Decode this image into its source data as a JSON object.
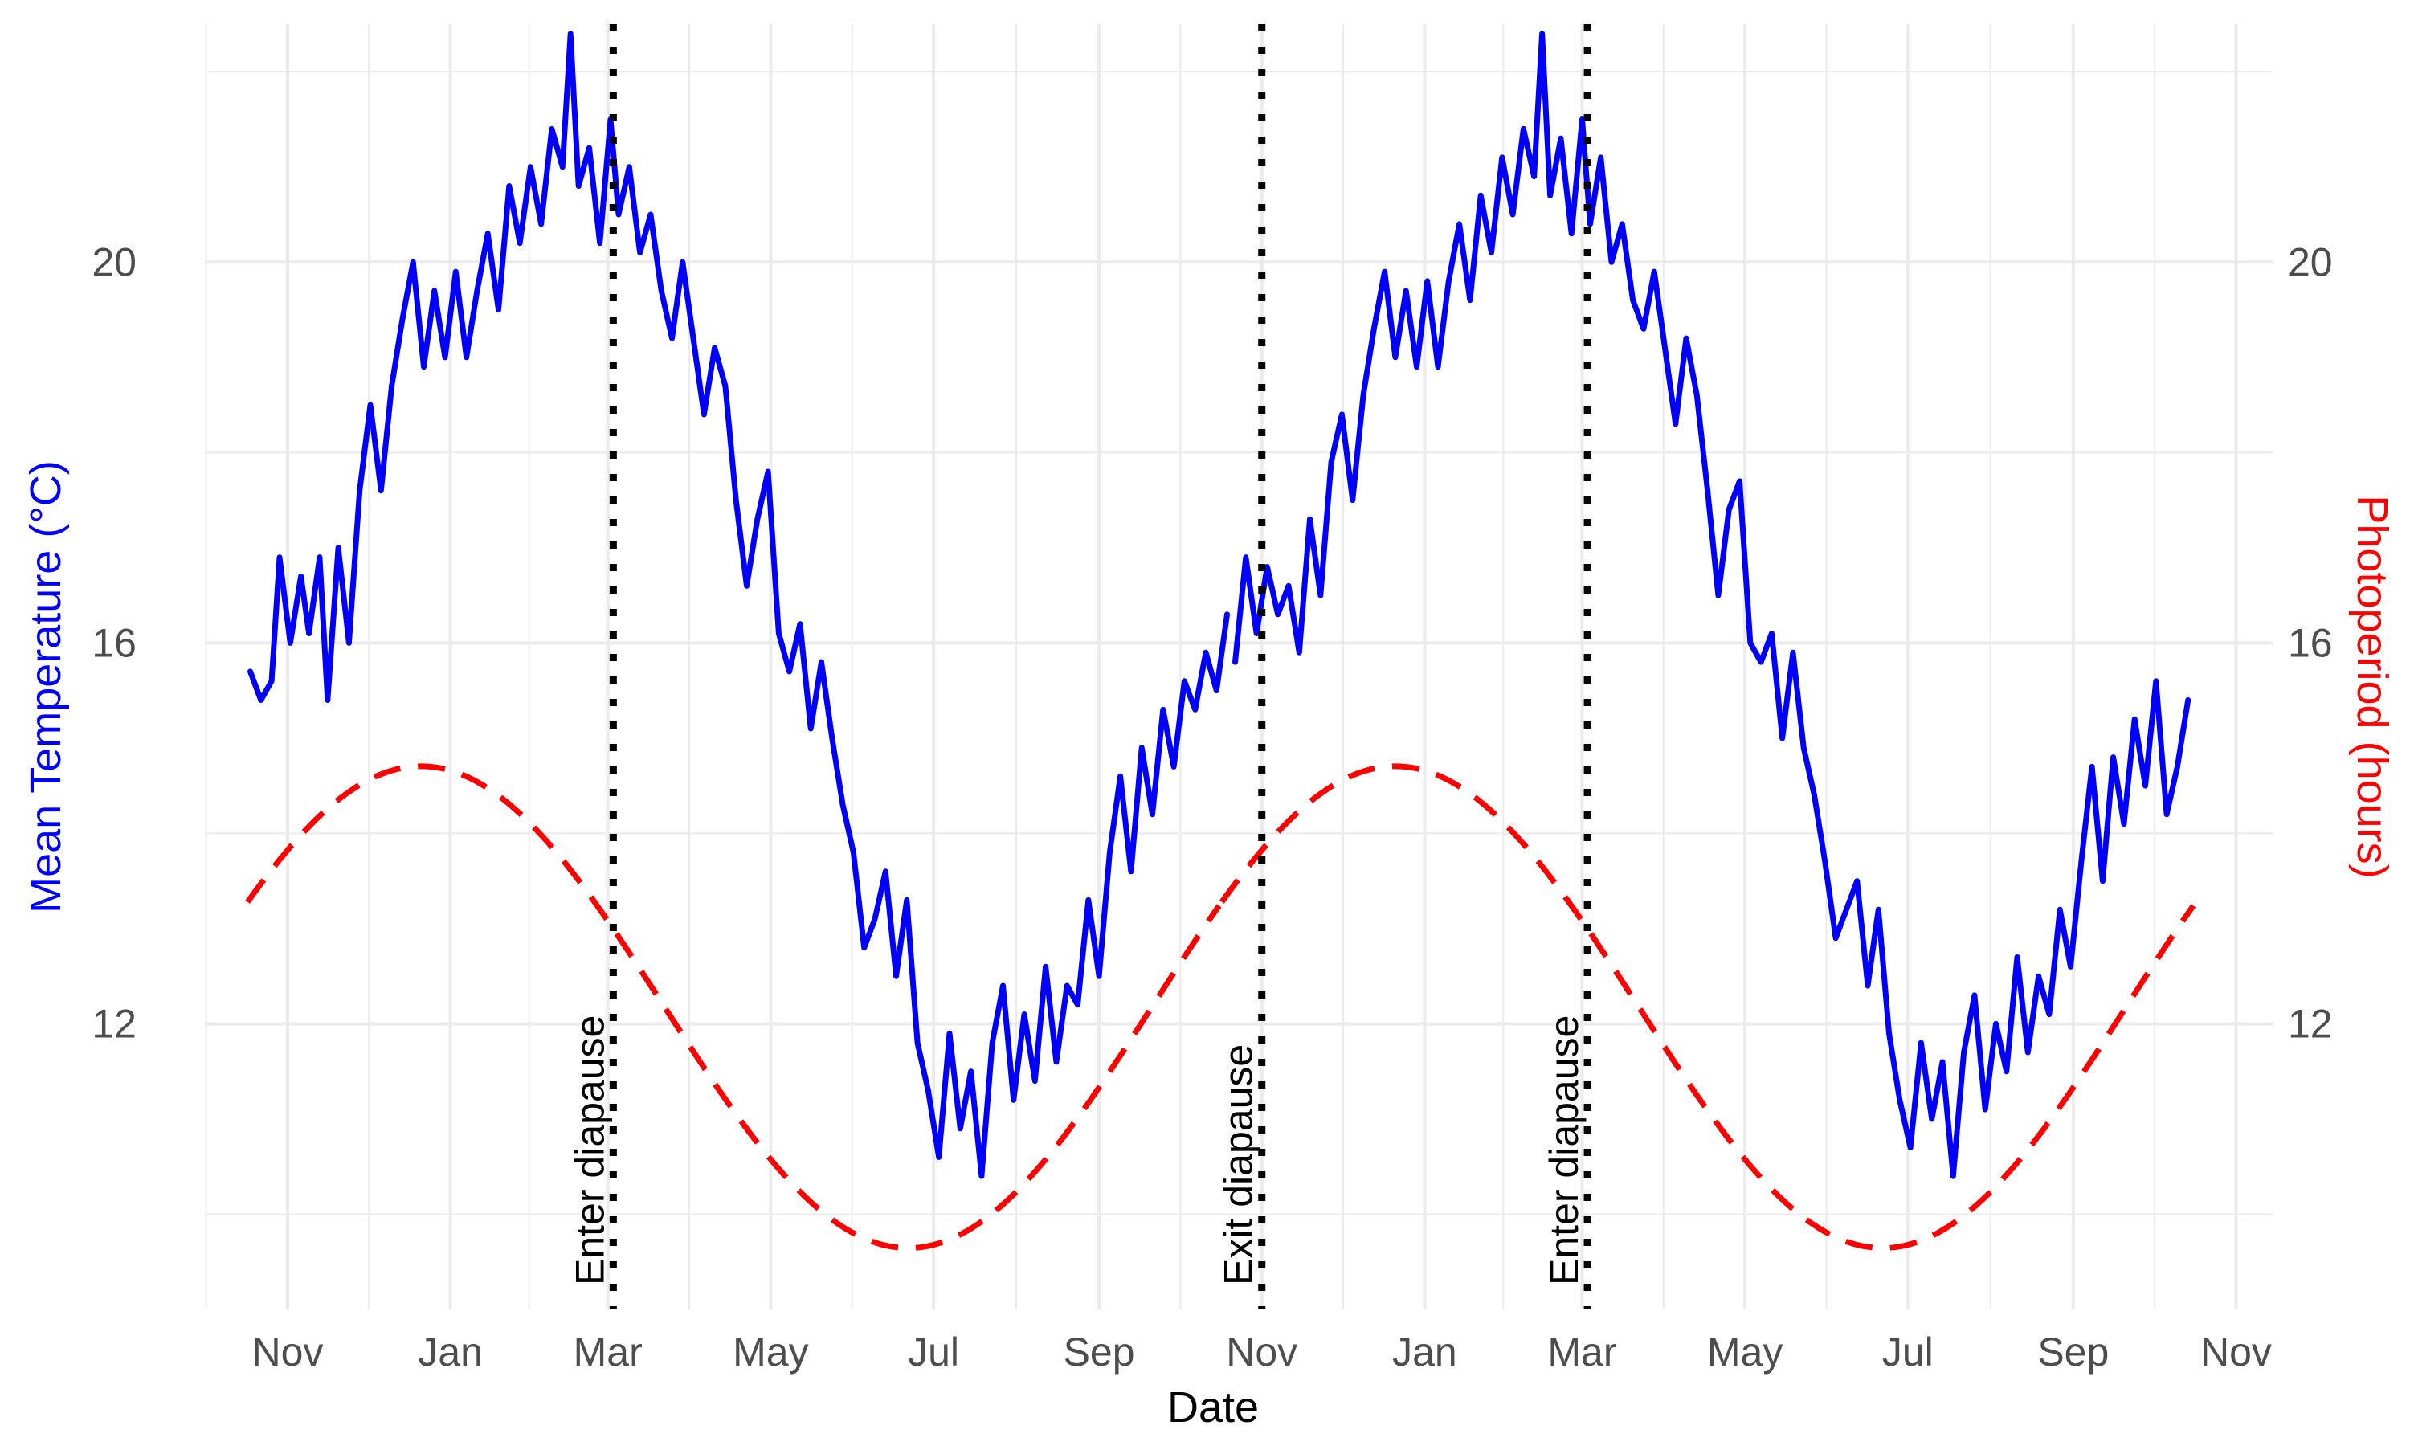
{
  "chart_data": {
    "type": "line",
    "xlabel": "Date",
    "ylabel": "Mean Temperature (°C)",
    "ylabel_right": "Photoperiod (hours)",
    "x_range": [
      "2020-10-01",
      "2022-11-15"
    ],
    "y_range": [
      9.0,
      22.5
    ],
    "y_ticks": [
      12,
      16,
      20
    ],
    "x_ticks": [
      {
        "date": "2020-11-01",
        "label": "Nov"
      },
      {
        "date": "2021-01-01",
        "label": "Jan"
      },
      {
        "date": "2021-03-01",
        "label": "Mar"
      },
      {
        "date": "2021-05-01",
        "label": "May"
      },
      {
        "date": "2021-07-01",
        "label": "Jul"
      },
      {
        "date": "2021-09-01",
        "label": "Sep"
      },
      {
        "date": "2021-11-01",
        "label": "Nov"
      },
      {
        "date": "2022-01-01",
        "label": "Jan"
      },
      {
        "date": "2022-03-01",
        "label": "Mar"
      },
      {
        "date": "2022-05-01",
        "label": "May"
      },
      {
        "date": "2022-07-01",
        "label": "Jul"
      },
      {
        "date": "2022-09-01",
        "label": "Sep"
      },
      {
        "date": "2022-11-01",
        "label": "Nov"
      }
    ],
    "grid": true,
    "legend": "none",
    "series": [
      {
        "color": "#0000ff",
        "style": "solid",
        "axis": "left",
        "points": [
          [
            "2020-10-18",
            15.7
          ],
          [
            "2020-10-22",
            15.4
          ],
          [
            "2020-10-26",
            15.6
          ],
          [
            "2020-10-29",
            16.9
          ],
          [
            "2020-11-02",
            16.0
          ],
          [
            "2020-11-06",
            16.7
          ],
          [
            "2020-11-09",
            16.1
          ],
          [
            "2020-11-13",
            16.9
          ],
          [
            "2020-11-16",
            15.4
          ],
          [
            "2020-11-20",
            17.0
          ],
          [
            "2020-11-24",
            16.0
          ],
          [
            "2020-11-28",
            17.6
          ],
          [
            "2020-12-02",
            18.5
          ],
          [
            "2020-12-06",
            17.6
          ],
          [
            "2020-12-10",
            18.7
          ],
          [
            "2020-12-14",
            19.4
          ],
          [
            "2020-12-18",
            20.0
          ],
          [
            "2020-12-22",
            18.9
          ],
          [
            "2020-12-26",
            19.7
          ],
          [
            "2020-12-30",
            19.0
          ],
          [
            "2021-01-03",
            19.9
          ],
          [
            "2021-01-07",
            19.0
          ],
          [
            "2021-01-11",
            19.7
          ],
          [
            "2021-01-15",
            20.3
          ],
          [
            "2021-01-19",
            19.5
          ],
          [
            "2021-01-23",
            20.8
          ],
          [
            "2021-01-27",
            20.2
          ],
          [
            "2021-01-31",
            21.0
          ],
          [
            "2021-02-04",
            20.4
          ],
          [
            "2021-02-08",
            21.4
          ],
          [
            "2021-02-12",
            21.0
          ],
          [
            "2021-02-15",
            22.4
          ],
          [
            "2021-02-18",
            20.8
          ],
          [
            "2021-02-22",
            21.2
          ],
          [
            "2021-02-26",
            20.2
          ],
          [
            "2021-03-02",
            21.5
          ],
          [
            "2021-03-05",
            20.5
          ],
          [
            "2021-03-09",
            21.0
          ],
          [
            "2021-03-13",
            20.1
          ],
          [
            "2021-03-17",
            20.5
          ],
          [
            "2021-03-21",
            19.7
          ],
          [
            "2021-03-25",
            19.2
          ],
          [
            "2021-03-29",
            20.0
          ],
          [
            "2021-04-02",
            19.2
          ],
          [
            "2021-04-06",
            18.4
          ],
          [
            "2021-04-10",
            19.1
          ],
          [
            "2021-04-14",
            18.7
          ],
          [
            "2021-04-18",
            17.5
          ],
          [
            "2021-04-22",
            16.6
          ],
          [
            "2021-04-26",
            17.3
          ],
          [
            "2021-04-30",
            17.8
          ],
          [
            "2021-05-04",
            16.1
          ],
          [
            "2021-05-08",
            15.7
          ],
          [
            "2021-05-12",
            16.2
          ],
          [
            "2021-05-16",
            15.1
          ],
          [
            "2021-05-20",
            15.8
          ],
          [
            "2021-05-24",
            15.0
          ],
          [
            "2021-05-28",
            14.3
          ],
          [
            "2021-06-01",
            13.8
          ],
          [
            "2021-06-05",
            12.8
          ],
          [
            "2021-06-09",
            13.1
          ],
          [
            "2021-06-13",
            13.6
          ],
          [
            "2021-06-17",
            12.5
          ],
          [
            "2021-06-21",
            13.3
          ],
          [
            "2021-06-25",
            11.8
          ],
          [
            "2021-06-29",
            11.3
          ],
          [
            "2021-07-03",
            10.6
          ],
          [
            "2021-07-07",
            11.9
          ],
          [
            "2021-07-11",
            10.9
          ],
          [
            "2021-07-15",
            11.5
          ],
          [
            "2021-07-19",
            10.4
          ],
          [
            "2021-07-23",
            11.8
          ],
          [
            "2021-07-27",
            12.4
          ],
          [
            "2021-07-31",
            11.2
          ],
          [
            "2021-08-04",
            12.1
          ],
          [
            "2021-08-08",
            11.4
          ],
          [
            "2021-08-12",
            12.6
          ],
          [
            "2021-08-16",
            11.6
          ],
          [
            "2021-08-20",
            12.4
          ],
          [
            "2021-08-24",
            12.2
          ],
          [
            "2021-08-28",
            13.3
          ],
          [
            "2021-09-01",
            12.5
          ],
          [
            "2021-09-05",
            13.8
          ],
          [
            "2021-09-09",
            14.6
          ],
          [
            "2021-09-13",
            13.6
          ],
          [
            "2021-09-17",
            14.9
          ],
          [
            "2021-09-21",
            14.2
          ],
          [
            "2021-09-25",
            15.3
          ],
          [
            "2021-09-29",
            14.7
          ],
          [
            "2021-10-03",
            15.6
          ],
          [
            "2021-10-07",
            15.3
          ],
          [
            "2021-10-11",
            15.9
          ],
          [
            "2021-10-15",
            15.5
          ],
          [
            "2021-10-19",
            16.3
          ]
        ]
      },
      {
        "color": "#ff0000",
        "style": "dashed",
        "axis": "right",
        "mean": 12.175,
        "amplitude": 2.53,
        "peak_date": "2020-12-21"
      },
      {
        "color": "#0000ff",
        "style": "solid",
        "axis": "left",
        "points": [
          [
            "2021-10-22",
            15.8
          ],
          [
            "2021-10-26",
            16.9
          ],
          [
            "2021-10-30",
            16.1
          ],
          [
            "2021-11-03",
            16.8
          ],
          [
            "2021-11-07",
            16.3
          ],
          [
            "2021-11-11",
            16.6
          ],
          [
            "2021-11-15",
            15.9
          ],
          [
            "2021-11-19",
            17.3
          ],
          [
            "2021-11-23",
            16.5
          ],
          [
            "2021-11-27",
            17.9
          ],
          [
            "2021-12-01",
            18.4
          ],
          [
            "2021-12-05",
            17.5
          ],
          [
            "2021-12-09",
            18.6
          ],
          [
            "2021-12-13",
            19.3
          ],
          [
            "2021-12-17",
            19.9
          ],
          [
            "2021-12-21",
            19.0
          ],
          [
            "2021-12-25",
            19.7
          ],
          [
            "2021-12-29",
            18.9
          ],
          [
            "2022-01-02",
            19.8
          ],
          [
            "2022-01-06",
            18.9
          ],
          [
            "2022-01-10",
            19.8
          ],
          [
            "2022-01-14",
            20.4
          ],
          [
            "2022-01-18",
            19.6
          ],
          [
            "2022-01-22",
            20.7
          ],
          [
            "2022-01-26",
            20.1
          ],
          [
            "2022-01-30",
            21.1
          ],
          [
            "2022-02-03",
            20.5
          ],
          [
            "2022-02-07",
            21.4
          ],
          [
            "2022-02-11",
            20.9
          ],
          [
            "2022-02-14",
            22.4
          ],
          [
            "2022-02-17",
            20.7
          ],
          [
            "2022-02-21",
            21.3
          ],
          [
            "2022-02-25",
            20.3
          ],
          [
            "2022-03-01",
            21.5
          ],
          [
            "2022-03-04",
            20.4
          ],
          [
            "2022-03-08",
            21.1
          ],
          [
            "2022-03-12",
            20.0
          ],
          [
            "2022-03-16",
            20.4
          ],
          [
            "2022-03-20",
            19.6
          ],
          [
            "2022-03-24",
            19.3
          ],
          [
            "2022-03-28",
            19.9
          ],
          [
            "2022-04-01",
            19.1
          ],
          [
            "2022-04-05",
            18.3
          ],
          [
            "2022-04-09",
            19.2
          ],
          [
            "2022-04-13",
            18.6
          ],
          [
            "2022-04-17",
            17.6
          ],
          [
            "2022-04-21",
            16.5
          ],
          [
            "2022-04-25",
            17.4
          ],
          [
            "2022-04-29",
            17.7
          ],
          [
            "2022-05-03",
            16.0
          ],
          [
            "2022-05-07",
            15.8
          ],
          [
            "2022-05-11",
            16.1
          ],
          [
            "2022-05-15",
            15.0
          ],
          [
            "2022-05-19",
            15.9
          ],
          [
            "2022-05-23",
            14.9
          ],
          [
            "2022-05-27",
            14.4
          ],
          [
            "2022-05-31",
            13.7
          ],
          [
            "2022-06-04",
            12.9
          ],
          [
            "2022-06-08",
            13.2
          ],
          [
            "2022-06-12",
            13.5
          ],
          [
            "2022-06-16",
            12.4
          ],
          [
            "2022-06-20",
            13.2
          ],
          [
            "2022-06-24",
            11.9
          ],
          [
            "2022-06-28",
            11.2
          ],
          [
            "2022-07-02",
            10.7
          ],
          [
            "2022-07-06",
            11.8
          ],
          [
            "2022-07-10",
            11.0
          ],
          [
            "2022-07-14",
            11.6
          ],
          [
            "2022-07-18",
            10.4
          ],
          [
            "2022-07-22",
            11.7
          ],
          [
            "2022-07-26",
            12.3
          ],
          [
            "2022-07-30",
            11.1
          ],
          [
            "2022-08-03",
            12.0
          ],
          [
            "2022-08-07",
            11.5
          ],
          [
            "2022-08-11",
            12.7
          ],
          [
            "2022-08-15",
            11.7
          ],
          [
            "2022-08-19",
            12.5
          ],
          [
            "2022-08-23",
            12.1
          ],
          [
            "2022-08-27",
            13.2
          ],
          [
            "2022-08-31",
            12.6
          ],
          [
            "2022-09-04",
            13.7
          ],
          [
            "2022-09-08",
            14.7
          ],
          [
            "2022-09-12",
            13.5
          ],
          [
            "2022-09-16",
            14.8
          ],
          [
            "2022-09-20",
            14.1
          ],
          [
            "2022-09-24",
            15.2
          ],
          [
            "2022-09-28",
            14.5
          ],
          [
            "2022-10-02",
            15.6
          ],
          [
            "2022-10-06",
            14.2
          ],
          [
            "2022-10-10",
            14.7
          ],
          [
            "2022-10-14",
            15.4
          ]
        ]
      },
      {
        "color": "#ff0000",
        "style": "dashed",
        "axis": "right",
        "mean": 12.175,
        "amplitude": 2.53,
        "peak_date": "2021-12-21"
      }
    ],
    "annotations": [
      {
        "date": "2021-03-03",
        "label": "Enter diapause"
      },
      {
        "date": "2021-11-01",
        "label": "Exit diapause"
      },
      {
        "date": "2022-03-03",
        "label": "Enter diapause"
      }
    ]
  }
}
